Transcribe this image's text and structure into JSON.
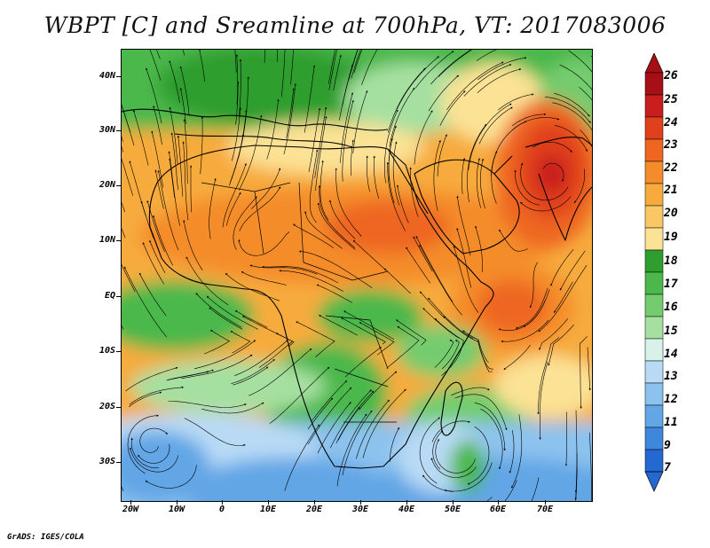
{
  "title": "WBPT [C] and Sreamline at 700hPa, VT: 2017083006",
  "credit": "GrADS: IGES/COLA",
  "lat_labels": [
    "40N",
    "30N",
    "20N",
    "10N",
    "EQ",
    "10S",
    "20S",
    "30S"
  ],
  "lon_labels": [
    "20W",
    "10W",
    "0",
    "10E",
    "20E",
    "30E",
    "40E",
    "50E",
    "60E",
    "70E"
  ],
  "colorbar": {
    "labels": [
      "26",
      "25",
      "24",
      "23",
      "22",
      "21",
      "20",
      "19",
      "18",
      "17",
      "16",
      "15",
      "14",
      "13",
      "12",
      "11",
      "9",
      "7"
    ],
    "colors": [
      "#a50f15",
      "#c81e1e",
      "#e0401c",
      "#ee6620",
      "#f48c2c",
      "#f7ab3c",
      "#f9c865",
      "#fbe294",
      "#2f9e2f",
      "#4cb84c",
      "#75cc6e",
      "#a6e0a0",
      "#d9f2e9",
      "#b8daf5",
      "#8cc2ee",
      "#62a6e6",
      "#3f87dc",
      "#2469d1"
    ]
  },
  "map": {
    "variable": "Wet-bulb potential temperature",
    "units": "C",
    "level": "700hPa",
    "valid_time": "2017083006",
    "lon_range": [
      -20,
      80
    ],
    "lat_range": [
      -37,
      45
    ],
    "features": [
      "warm maximum near 22N 72E",
      "cold southern ocean"
    ]
  }
}
